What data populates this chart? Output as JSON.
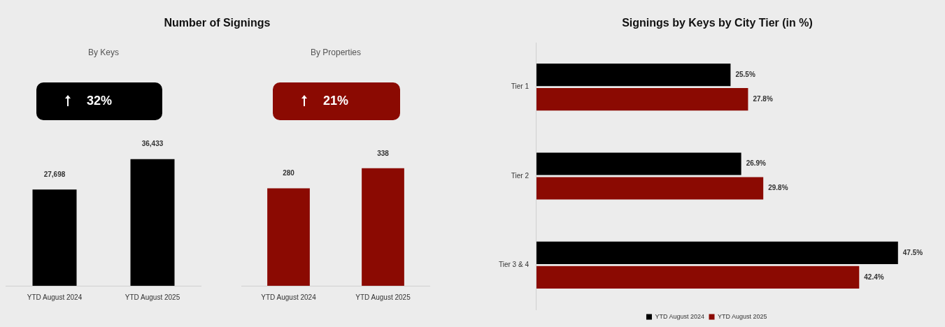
{
  "chart_data": [
    {
      "type": "bar",
      "title": "Number of Signings",
      "subtitle": "By Keys",
      "categories": [
        "YTD August 2024",
        "YTD August 2025"
      ],
      "values": [
        27698,
        36433
      ],
      "value_labels": [
        "27,698",
        "36,433"
      ],
      "color": "#000000",
      "annotations": [
        "32%"
      ],
      "grid": false,
      "legend": false
    },
    {
      "type": "bar",
      "subtitle": "By Properties",
      "categories": [
        "YTD August 2024",
        "YTD August 2025"
      ],
      "values": [
        280,
        338
      ],
      "value_labels": [
        "280",
        "338"
      ],
      "color": "#8b0a02",
      "annotations": [
        "21%"
      ],
      "grid": false,
      "legend": false
    },
    {
      "type": "bar",
      "title": "Signings by Keys by City Tier (in %)",
      "orientation": "horizontal",
      "categories": [
        "Tier 1",
        "Tier 2",
        "Tier 3 & 4"
      ],
      "grid": false,
      "legend": "bottom",
      "series": [
        {
          "name": "YTD August 2024",
          "color": "#000000",
          "values": [
            25.5,
            26.9,
            47.5
          ],
          "value_labels": [
            "25.5%",
            "26.9%",
            "47.5%"
          ]
        },
        {
          "name": "YTD August 2025",
          "color": "#8b0a02",
          "values": [
            27.8,
            29.8,
            42.4
          ],
          "value_labels": [
            "27.8%",
            "29.8%",
            "42.4%"
          ]
        }
      ]
    }
  ]
}
